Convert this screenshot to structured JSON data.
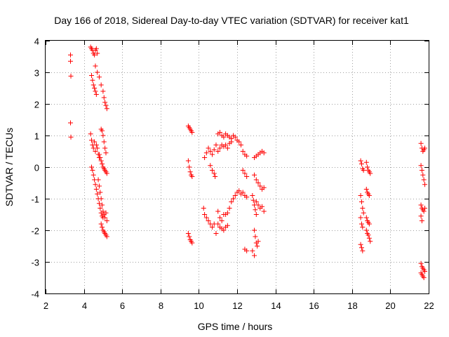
{
  "chart_data": {
    "type": "scatter",
    "title": "Day 166 of 2018, Sidereal Day-to-day VTEC variation (SDTVAR) for receiver kat1",
    "xlabel": "GPS time / hours",
    "ylabel": "SDTVAR / TECUs",
    "xlim": [
      2,
      22
    ],
    "ylim": [
      -4,
      4
    ],
    "xticks": [
      "2",
      "4",
      "6",
      "8",
      "10",
      "12",
      "14",
      "16",
      "18",
      "20",
      "22"
    ],
    "yticks": [
      "4",
      "3",
      "2",
      "1",
      "0",
      "-1",
      "-2",
      "-3",
      "-4"
    ],
    "grid": true,
    "marker": "+",
    "color": "#ff0000",
    "series": [
      {
        "name": "SDTVAR",
        "segments": [
          {
            "x": [
              3.3,
              3.3,
              3.32
            ],
            "y": [
              3.55,
              3.35,
              2.88
            ]
          },
          {
            "x": [
              3.3,
              3.32
            ],
            "y": [
              1.4,
              0.95
            ]
          },
          {
            "x": [
              4.35,
              4.4,
              4.45,
              4.5,
              4.55,
              4.6,
              4.65,
              4.7
            ],
            "y": [
              3.8,
              3.75,
              3.7,
              3.6,
              3.55,
              3.7,
              3.75,
              3.6
            ]
          },
          {
            "x": [
              4.4,
              4.45,
              4.5,
              4.55,
              4.6,
              4.65
            ],
            "y": [
              2.9,
              2.75,
              2.6,
              2.5,
              2.4,
              2.3
            ]
          },
          {
            "x": [
              4.6,
              4.7,
              4.8,
              4.9,
              5.0,
              5.05,
              5.1,
              5.15,
              5.2
            ],
            "y": [
              3.2,
              3.0,
              2.85,
              2.6,
              2.4,
              2.2,
              2.05,
              1.95,
              1.85
            ]
          },
          {
            "x": [
              4.35,
              4.4,
              4.45,
              4.5,
              4.55,
              4.6,
              4.65,
              4.7,
              4.75,
              4.8
            ],
            "y": [
              1.05,
              0.85,
              0.7,
              0.6,
              0.8,
              0.5,
              0.7,
              0.6,
              0.4,
              0.3
            ]
          },
          {
            "x": [
              4.9,
              4.95,
              5.0,
              5.05,
              5.1,
              5.15
            ],
            "y": [
              1.2,
              1.15,
              1.0,
              0.8,
              0.6,
              0.45
            ]
          },
          {
            "x": [
              4.8,
              4.85,
              4.9,
              4.95,
              5.0,
              5.05,
              5.1,
              5.15,
              5.2
            ],
            "y": [
              0.4,
              0.3,
              0.2,
              0.1,
              0.0,
              -0.05,
              -0.1,
              -0.15,
              -0.2
            ]
          },
          {
            "x": [
              4.4,
              4.45,
              4.5,
              4.55,
              4.6,
              4.65,
              4.7,
              4.75,
              4.8,
              4.85,
              4.9,
              4.95,
              5.0
            ],
            "y": [
              0.0,
              -0.1,
              -0.25,
              -0.4,
              -0.55,
              -0.7,
              -0.85,
              -1.0,
              -1.15,
              -1.3,
              -1.45,
              -1.55,
              -1.6
            ]
          },
          {
            "x": [
              4.75,
              4.8,
              4.85,
              4.9,
              4.95,
              5.0,
              5.05,
              5.1,
              5.15,
              5.2
            ],
            "y": [
              -0.4,
              -0.6,
              -0.8,
              -1.0,
              -1.2,
              -1.4,
              -1.5,
              -1.6,
              -1.45,
              -1.7
            ]
          },
          {
            "x": [
              4.9,
              4.95,
              5.0,
              5.05,
              5.1,
              5.15,
              5.2
            ],
            "y": [
              -1.8,
              -1.9,
              -2.0,
              -2.05,
              -2.1,
              -2.15,
              -2.2
            ]
          },
          {
            "x": [
              9.45,
              9.5,
              9.55,
              9.6,
              9.65
            ],
            "y": [
              1.3,
              1.25,
              1.2,
              1.15,
              1.1
            ]
          },
          {
            "x": [
              9.45,
              9.5,
              9.55,
              9.6,
              9.65
            ],
            "y": [
              0.2,
              0.0,
              -0.15,
              -0.25,
              -0.3
            ]
          },
          {
            "x": [
              9.45,
              9.5,
              9.55,
              9.6,
              9.65
            ],
            "y": [
              -2.1,
              -2.2,
              -2.3,
              -2.35,
              -2.4
            ]
          },
          {
            "x": [
              10.3,
              10.4,
              10.5,
              10.6,
              10.7,
              10.8,
              10.9
            ],
            "y": [
              0.3,
              0.45,
              0.6,
              0.5,
              0.4,
              0.55,
              0.7
            ]
          },
          {
            "x": [
              10.6,
              10.7,
              10.8,
              10.85
            ],
            "y": [
              0.05,
              -0.1,
              -0.2,
              -0.3
            ]
          },
          {
            "x": [
              10.25,
              10.3,
              10.4,
              10.5,
              10.6,
              10.7,
              10.8,
              10.9
            ],
            "y": [
              -1.3,
              -1.5,
              -1.6,
              -1.7,
              -1.8,
              -1.9,
              -1.8,
              -2.1
            ]
          },
          {
            "x": [
              11.0,
              11.1,
              11.2,
              11.3,
              11.4,
              11.5,
              11.6,
              11.7,
              11.8,
              11.9,
              12.0,
              12.1,
              12.2,
              12.3,
              12.4,
              12.5
            ],
            "y": [
              1.05,
              1.1,
              1.0,
              0.95,
              1.05,
              1.0,
              0.95,
              0.9,
              1.0,
              0.95,
              0.85,
              0.8,
              0.7,
              0.5,
              0.4,
              0.35
            ]
          },
          {
            "x": [
              11.0,
              11.1,
              11.2,
              11.3,
              11.4,
              11.5,
              11.6,
              11.7
            ],
            "y": [
              0.5,
              0.6,
              0.7,
              0.65,
              0.7,
              0.6,
              0.75,
              0.8
            ]
          },
          {
            "x": [
              11.7,
              11.8,
              11.9,
              12.0,
              12.1,
              12.2
            ],
            "y": [
              -1.1,
              -1.0,
              -0.9,
              -0.8,
              -0.75,
              -0.85
            ]
          },
          {
            "x": [
              11.0,
              11.1,
              11.2,
              11.3,
              11.4,
              11.5,
              11.6
            ],
            "y": [
              -1.4,
              -1.6,
              -1.7,
              -1.5,
              -1.5,
              -1.45,
              -1.3
            ]
          },
          {
            "x": [
              11.0,
              11.1,
              11.2,
              11.3,
              11.4,
              11.5
            ],
            "y": [
              -1.8,
              -1.9,
              -1.95,
              -2.0,
              -1.9,
              -1.85
            ]
          },
          {
            "x": [
              12.3,
              12.4,
              12.5
            ],
            "y": [
              -0.1,
              -0.2,
              -0.3
            ]
          },
          {
            "x": [
              12.4,
              12.5
            ],
            "y": [
              -2.6,
              -2.65
            ]
          },
          {
            "x": [
              12.3,
              12.4,
              12.5
            ],
            "y": [
              -0.8,
              -0.9,
              -0.95
            ]
          },
          {
            "x": [
              12.9,
              13.0,
              13.1,
              13.2,
              13.3,
              13.4
            ],
            "y": [
              0.3,
              0.35,
              0.4,
              0.45,
              0.5,
              0.45
            ]
          },
          {
            "x": [
              12.9,
              13.0,
              13.1,
              13.2,
              13.3,
              13.4
            ],
            "y": [
              -0.25,
              -0.4,
              -0.5,
              -0.6,
              -0.7,
              -0.65
            ]
          },
          {
            "x": [
              12.8,
              12.85,
              12.9,
              12.95,
              13.0
            ],
            "y": [
              -0.9,
              -1.05,
              -1.2,
              -1.35,
              -1.5
            ]
          },
          {
            "x": [
              13.0,
              13.1,
              13.2,
              13.3,
              13.4
            ],
            "y": [
              -1.1,
              -1.2,
              -1.3,
              -1.25,
              -1.4
            ]
          },
          {
            "x": [
              12.9,
              12.95,
              13.0,
              13.05,
              13.1
            ],
            "y": [
              -2.0,
              -2.2,
              -2.4,
              -2.5,
              -2.35
            ]
          },
          {
            "x": [
              12.8,
              12.9
            ],
            "y": [
              -2.65,
              -2.8
            ]
          },
          {
            "x": [
              18.45,
              18.5,
              18.55,
              18.6
            ],
            "y": [
              0.2,
              0.1,
              -0.05,
              -0.1
            ]
          },
          {
            "x": [
              18.75,
              18.8,
              18.85,
              18.9,
              18.95
            ],
            "y": [
              0.15,
              0.0,
              -0.1,
              -0.15,
              -0.2
            ]
          },
          {
            "x": [
              18.45,
              18.5,
              18.55,
              18.6
            ],
            "y": [
              -0.9,
              -1.1,
              -1.3,
              -1.45
            ]
          },
          {
            "x": [
              18.45,
              18.5,
              18.55
            ],
            "y": [
              -1.6,
              -1.8,
              -1.9
            ]
          },
          {
            "x": [
              18.45,
              18.5,
              18.55
            ],
            "y": [
              -2.45,
              -2.55,
              -2.65
            ]
          },
          {
            "x": [
              18.75,
              18.8,
              18.85,
              18.9
            ],
            "y": [
              -0.7,
              -0.8,
              -0.85,
              -0.9
            ]
          },
          {
            "x": [
              18.75,
              18.8,
              18.85,
              18.9
            ],
            "y": [
              -1.6,
              -1.7,
              -1.75,
              -1.8
            ]
          },
          {
            "x": [
              18.75,
              18.8,
              18.85,
              18.9,
              18.95
            ],
            "y": [
              -2.0,
              -2.1,
              -2.15,
              -2.25,
              -2.35
            ]
          },
          {
            "x": [
              21.6,
              21.65,
              21.7,
              21.75,
              21.8
            ],
            "y": [
              0.75,
              0.6,
              0.5,
              0.55,
              0.6
            ]
          },
          {
            "x": [
              21.6,
              21.65,
              21.7,
              21.75,
              21.8
            ],
            "y": [
              0.05,
              -0.1,
              -0.25,
              -0.4,
              -0.55
            ]
          },
          {
            "x": [
              21.6,
              21.65,
              21.7,
              21.75,
              21.8
            ],
            "y": [
              -1.2,
              -1.3,
              -1.35,
              -1.4,
              -1.3
            ]
          },
          {
            "x": [
              21.6,
              21.65
            ],
            "y": [
              -1.55,
              -1.7
            ]
          },
          {
            "x": [
              21.6,
              21.65,
              21.7,
              21.75,
              21.8
            ],
            "y": [
              -3.05,
              -3.15,
              -3.2,
              -3.25,
              -3.3
            ]
          },
          {
            "x": [
              21.6,
              21.65,
              21.7,
              21.75
            ],
            "y": [
              -3.35,
              -3.4,
              -3.45,
              -3.5
            ]
          }
        ]
      }
    ]
  }
}
